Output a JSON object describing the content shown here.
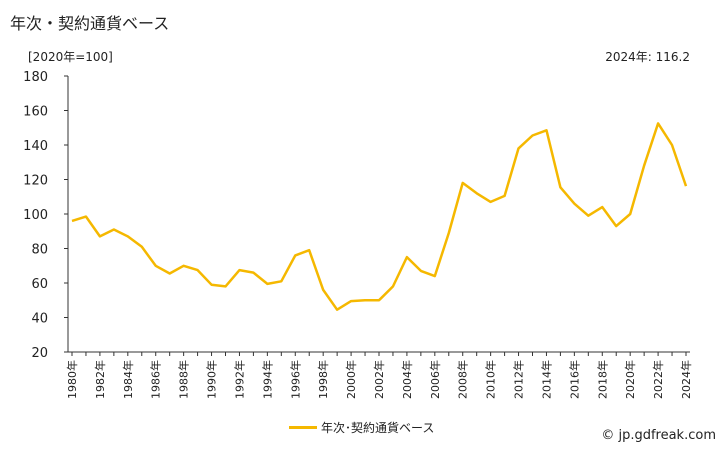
{
  "page": {
    "title": "年次・契約通貨ベース",
    "unit_label": "[2020年=100]",
    "latest_label": "2024年: 116.2",
    "credit": "© jp.gdfreak.com"
  },
  "chart_data": {
    "type": "line",
    "title": "年次・契約通貨ベース",
    "ylim": [
      20,
      180
    ],
    "yticks": [
      20,
      40,
      60,
      80,
      100,
      120,
      140,
      160,
      180
    ],
    "x": [
      1980,
      1981,
      1982,
      1983,
      1984,
      1985,
      1986,
      1987,
      1988,
      1989,
      1990,
      1991,
      1992,
      1993,
      1994,
      1995,
      1996,
      1997,
      1998,
      1999,
      2000,
      2001,
      2002,
      2003,
      2004,
      2005,
      2006,
      2007,
      2008,
      2009,
      2010,
      2011,
      2012,
      2013,
      2014,
      2015,
      2016,
      2017,
      2018,
      2019,
      2020,
      2021,
      2022,
      2023,
      2024
    ],
    "xtick_labels": [
      "1980年",
      "1982年",
      "1984年",
      "1986年",
      "1988年",
      "1990年",
      "1992年",
      "1994年",
      "1996年",
      "1998年",
      "2000年",
      "2002年",
      "2004年",
      "2006年",
      "2008年",
      "2010年",
      "2012年",
      "2014年",
      "2016年",
      "2018年",
      "2020年",
      "2022年",
      "2024年"
    ],
    "series": [
      {
        "name": "年次･契約通貨ベース",
        "color": "#f5b800",
        "values": [
          96,
          98.5,
          87,
          91,
          87,
          81,
          70,
          65.5,
          70,
          67.5,
          59,
          58,
          67.5,
          66,
          59.5,
          61,
          76,
          79,
          56,
          44.5,
          49.5,
          50,
          50,
          58,
          75,
          67,
          64,
          89,
          118,
          112,
          107,
          110.5,
          138,
          145.5,
          148.5,
          115.5,
          106,
          99,
          104,
          93,
          100,
          128,
          152.5,
          140,
          116.2
        ]
      }
    ],
    "grid": false,
    "legend_position": "bottom"
  }
}
